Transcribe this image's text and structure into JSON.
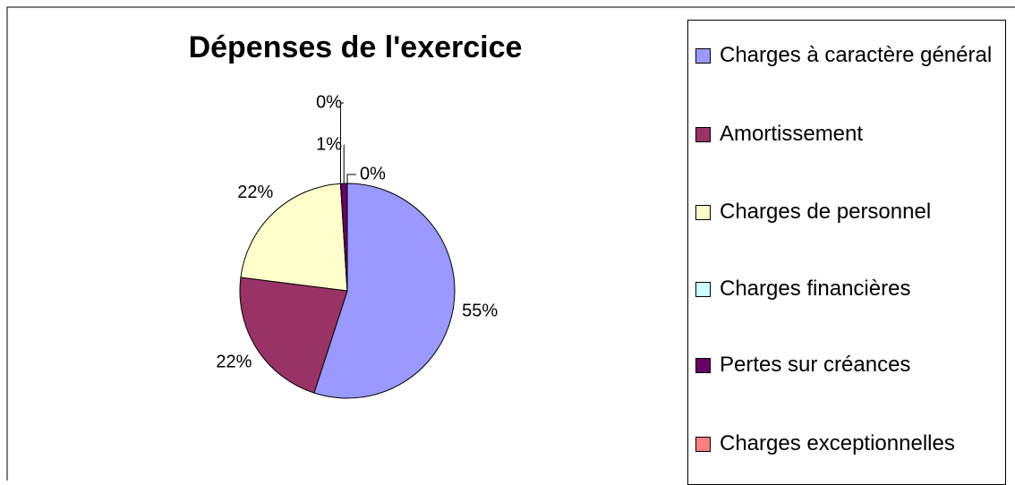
{
  "chart_data": {
    "type": "pie",
    "title": "Dépenses de l'exercice",
    "categories": [
      "Charges à caractère général",
      "Amortissement",
      "Charges de personnel",
      "Charges financières",
      "Pertes sur créances",
      "Charges exceptionnelles"
    ],
    "values": [
      55,
      22,
      22,
      0,
      1,
      0
    ],
    "value_labels": [
      "55%",
      "22%",
      "22%",
      "0%",
      "1%",
      "0%"
    ],
    "colors": [
      "#9999ff",
      "#993366",
      "#ffffcc",
      "#ccffff",
      "#660066",
      "#ff8080"
    ],
    "legend": "right"
  }
}
